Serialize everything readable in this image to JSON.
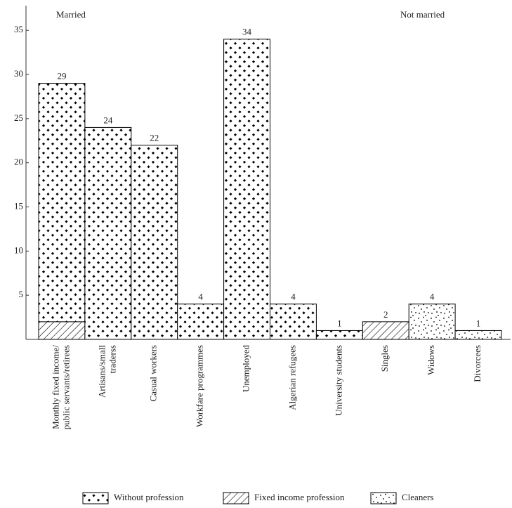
{
  "chart_data": {
    "type": "bar",
    "stacked": true,
    "annotations": [
      "Married",
      "Not married"
    ],
    "categories": [
      [
        "Monthly fixed income/",
        "public servants/retirees"
      ],
      [
        "Artisans/small",
        "traderss"
      ],
      [
        "Casual workers"
      ],
      [
        "Workfare programmes"
      ],
      [
        "Unemployed"
      ],
      [
        "Algerian refugees"
      ],
      [
        "University students"
      ],
      [
        "Singles"
      ],
      [
        "Widows"
      ],
      [
        "Divorcees"
      ]
    ],
    "series": [
      {
        "name": "Without profession",
        "color": "#000000",
        "pattern": "diamonds",
        "values": [
          27,
          24,
          22,
          4,
          34,
          4,
          1,
          null,
          null,
          null
        ]
      },
      {
        "name": "Fixed income profession",
        "color": "#000000",
        "pattern": "hatch",
        "values": [
          2,
          null,
          null,
          null,
          null,
          null,
          null,
          2,
          null,
          null
        ]
      },
      {
        "name": "Cleaners",
        "color": "#000000",
        "pattern": "dots",
        "values": [
          null,
          null,
          null,
          null,
          null,
          null,
          null,
          null,
          4,
          1
        ]
      }
    ],
    "totals": [
      29,
      24,
      22,
      4,
      34,
      4,
      1,
      2,
      4,
      1
    ],
    "ylim": [
      0,
      37.8
    ],
    "yticks": [
      5,
      10,
      15,
      20,
      25,
      30,
      35
    ],
    "legend": "bottom"
  }
}
